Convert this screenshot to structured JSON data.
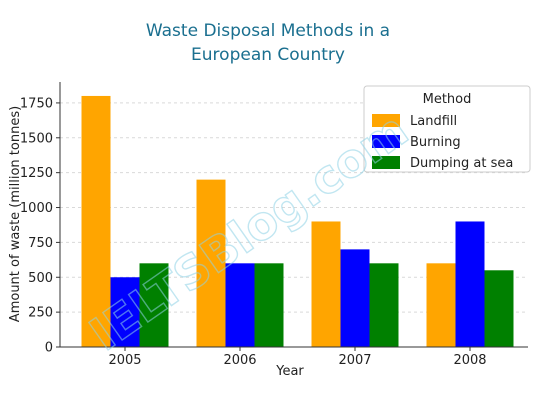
{
  "title_line1": "Waste Disposal Methods in a",
  "title_line2": "European Country",
  "title_color": "#1a6f8f",
  "watermark": "IELTSBlog.com",
  "chart_data": {
    "type": "bar",
    "title": "Waste Disposal Methods in a European Country",
    "xlabel": "Year",
    "ylabel": "Amount of waste (million tonnes)",
    "categories": [
      "2005",
      "2006",
      "2007",
      "2008"
    ],
    "series": [
      {
        "name": "Landfill",
        "color": "#ffa500",
        "values": [
          1800,
          1200,
          900,
          600
        ]
      },
      {
        "name": "Burning",
        "color": "#0000ff",
        "values": [
          500,
          600,
          700,
          900
        ]
      },
      {
        "name": "Dumping at sea",
        "color": "#008000",
        "values": [
          600,
          600,
          600,
          550
        ]
      }
    ],
    "ylim": [
      0,
      1900
    ],
    "yticks": [
      0,
      250,
      500,
      750,
      1000,
      1250,
      1500,
      1750
    ],
    "grid": true,
    "legend": {
      "title": "Method",
      "placement": "top-right"
    }
  }
}
